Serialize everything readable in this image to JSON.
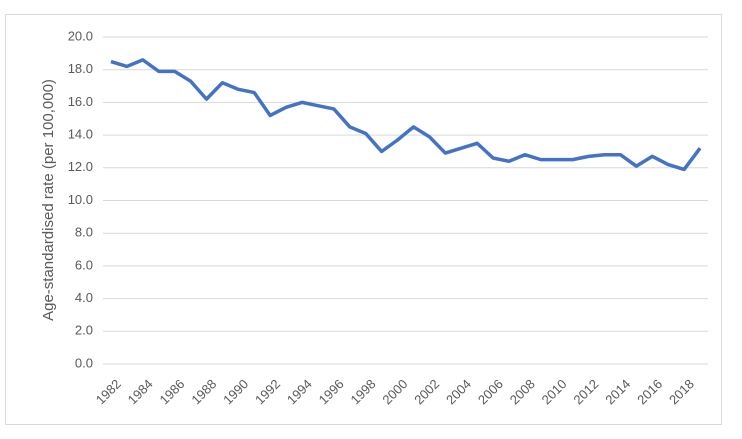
{
  "chart_data": {
    "type": "line",
    "y_label": "Age-standardised rate (per 100,000)",
    "categories": [
      "1982",
      null,
      "1984",
      null,
      "1986",
      null,
      "1988",
      null,
      "1990",
      null,
      "1992",
      null,
      "1994",
      null,
      "1996",
      null,
      "1998",
      null,
      "2000",
      null,
      "2002",
      null,
      "2004",
      null,
      "2006",
      null,
      "2008",
      null,
      "2010",
      null,
      "2012",
      null,
      "2014",
      null,
      "2016",
      null,
      "2018",
      null
    ],
    "series": [
      {
        "color": "#4472c4",
        "values": [
          18.5,
          18.2,
          18.6,
          17.9,
          17.9,
          17.3,
          16.2,
          17.2,
          16.8,
          16.6,
          15.2,
          15.7,
          16.0,
          15.8,
          15.6,
          14.5,
          14.1,
          13.0,
          13.7,
          14.5,
          13.9,
          12.9,
          13.2,
          13.5,
          12.6,
          12.4,
          12.8,
          12.5,
          12.5,
          12.5,
          12.7,
          12.8,
          12.8,
          12.1,
          12.7,
          12.2,
          11.9,
          13.2
        ]
      }
    ],
    "ylim": [
      0,
      20
    ],
    "yticks": [
      {
        "value": 0,
        "label": "0.0"
      },
      {
        "value": 2,
        "label": "2.0"
      },
      {
        "value": 4,
        "label": "4.0"
      },
      {
        "value": 6,
        "label": "6.0"
      },
      {
        "value": 8,
        "label": "8.0"
      },
      {
        "value": 10,
        "label": "10.0"
      },
      {
        "value": 12,
        "label": "12.0"
      },
      {
        "value": 14,
        "label": "14.0"
      },
      {
        "value": 16,
        "label": "16.0"
      },
      {
        "value": 18,
        "label": "18.0"
      },
      {
        "value": 20,
        "label": "20.0"
      }
    ],
    "grid": true
  }
}
